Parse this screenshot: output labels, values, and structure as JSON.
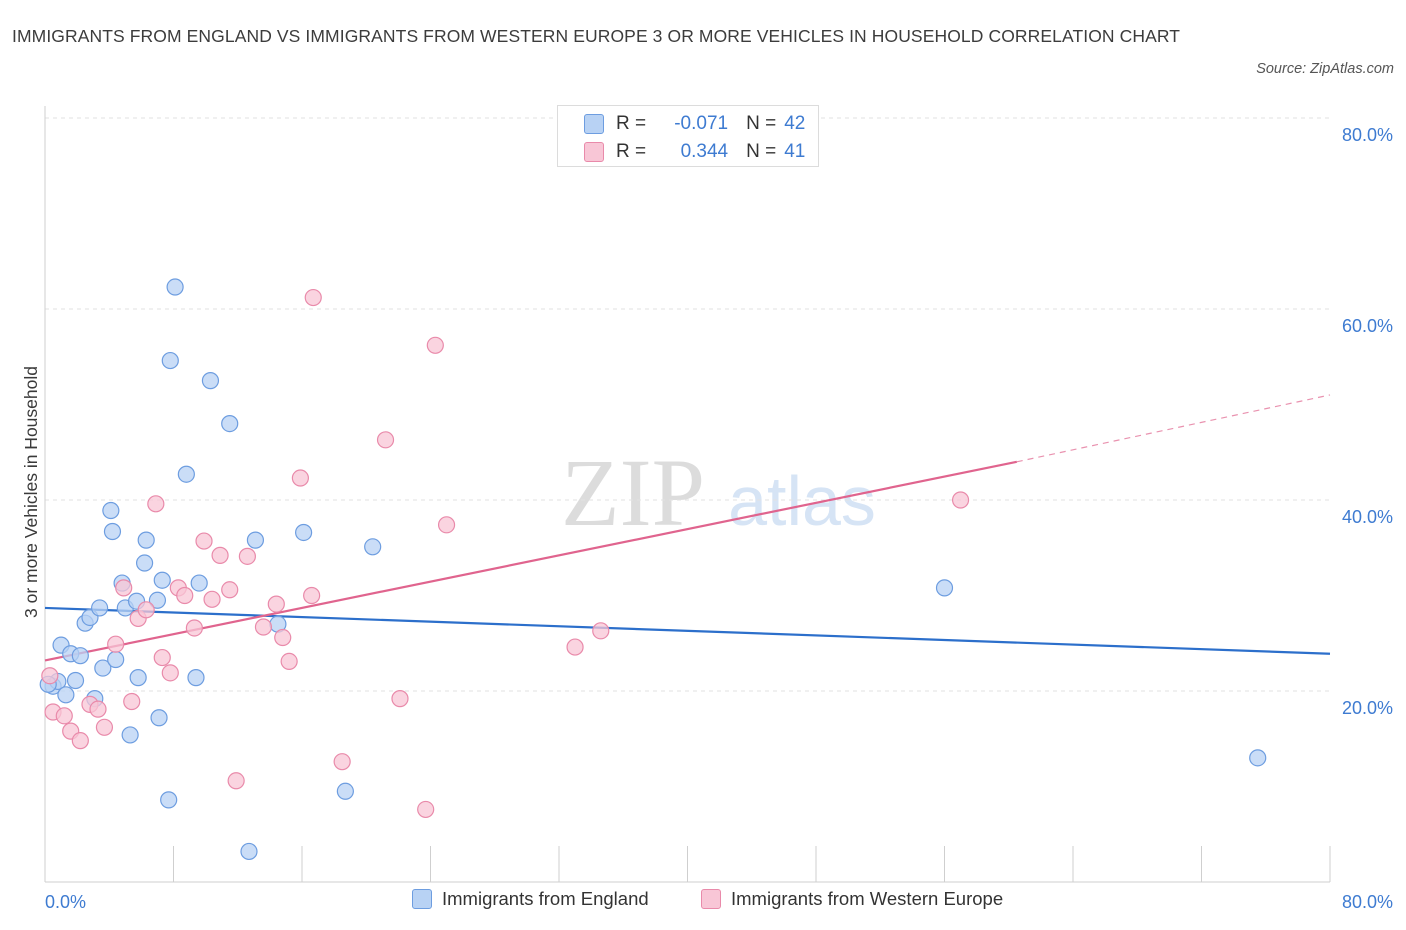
{
  "title": "IMMIGRANTS FROM ENGLAND VS IMMIGRANTS FROM WESTERN EUROPE 3 OR MORE VEHICLES IN HOUSEHOLD CORRELATION CHART",
  "source": "Source: ZipAtlas.com",
  "watermark": {
    "zip": "ZIP",
    "atlas": "atlas"
  },
  "colors": {
    "blue_fill": "#b8d2f4",
    "blue_stroke": "#6d9de0",
    "blue_line": "#2c6fcb",
    "pink_fill": "#f8c6d6",
    "pink_stroke": "#e98aaa",
    "pink_line": "#e0648e",
    "tick_label": "#3e7bd1",
    "grid": "#e2e2e2"
  },
  "legend_box": {
    "rows": [
      {
        "series": "blue",
        "r_label": "R =",
        "r_value": "-0.071",
        "n_label": "N =",
        "n_value": "42"
      },
      {
        "series": "pink",
        "r_label": "R =",
        "r_value": "0.344",
        "n_label": "N =",
        "n_value": "41"
      }
    ]
  },
  "legend_bottom": [
    {
      "series": "blue",
      "label": "Immigrants from England"
    },
    {
      "series": "pink",
      "label": "Immigrants from Western Europe"
    }
  ],
  "chart_data": {
    "type": "scatter",
    "title": "IMMIGRANTS FROM ENGLAND VS IMMIGRANTS FROM WESTERN EUROPE 3 OR MORE VEHICLES IN HOUSEHOLD CORRELATION CHART",
    "xlabel": "",
    "ylabel": "3 or more Vehicles in Household",
    "xlim": [
      0,
      80
    ],
    "ylim": [
      0,
      80
    ],
    "x_tick_labels": [
      {
        "value": 0,
        "label": "0.0%"
      },
      {
        "value": 80,
        "label": "80.0%"
      }
    ],
    "y_tick_labels": [
      {
        "value": 20,
        "label": "20.0%"
      },
      {
        "value": 40,
        "label": "40.0%"
      },
      {
        "value": 60,
        "label": "60.0%"
      },
      {
        "value": 80,
        "label": "80.0%"
      }
    ],
    "grid": true,
    "legend_position": "top-center",
    "series": [
      {
        "name": "Immigrants from England",
        "color": "blue",
        "r": -0.071,
        "n": 42,
        "trend": {
          "x": [
            0,
            80
          ],
          "y": [
            28.7,
            23.9
          ]
        },
        "points": [
          {
            "x": 0.5,
            "y": 20.5
          },
          {
            "x": 0.8,
            "y": 21.0
          },
          {
            "x": 1.0,
            "y": 24.8
          },
          {
            "x": 1.3,
            "y": 19.6
          },
          {
            "x": 1.6,
            "y": 23.9
          },
          {
            "x": 1.9,
            "y": 21.1
          },
          {
            "x": 2.2,
            "y": 23.7
          },
          {
            "x": 2.5,
            "y": 27.1
          },
          {
            "x": 2.8,
            "y": 27.7
          },
          {
            "x": 3.1,
            "y": 19.2
          },
          {
            "x": 3.4,
            "y": 28.7
          },
          {
            "x": 3.6,
            "y": 22.4
          },
          {
            "x": 4.1,
            "y": 38.9
          },
          {
            "x": 4.2,
            "y": 36.7
          },
          {
            "x": 4.4,
            "y": 23.3
          },
          {
            "x": 4.8,
            "y": 31.3
          },
          {
            "x": 5.0,
            "y": 28.7
          },
          {
            "x": 5.3,
            "y": 15.4
          },
          {
            "x": 5.7,
            "y": 29.4
          },
          {
            "x": 5.8,
            "y": 21.4
          },
          {
            "x": 6.2,
            "y": 33.4
          },
          {
            "x": 6.3,
            "y": 35.8
          },
          {
            "x": 7.0,
            "y": 29.5
          },
          {
            "x": 7.1,
            "y": 17.2
          },
          {
            "x": 7.3,
            "y": 31.6
          },
          {
            "x": 7.7,
            "y": 8.6
          },
          {
            "x": 7.8,
            "y": 54.6
          },
          {
            "x": 8.1,
            "y": 62.3
          },
          {
            "x": 8.8,
            "y": 42.7
          },
          {
            "x": 9.4,
            "y": 21.4
          },
          {
            "x": 9.6,
            "y": 31.3
          },
          {
            "x": 10.3,
            "y": 52.5
          },
          {
            "x": 11.5,
            "y": 48.0
          },
          {
            "x": 12.7,
            "y": 3.2
          },
          {
            "x": 13.1,
            "y": 35.8
          },
          {
            "x": 14.5,
            "y": 27.0
          },
          {
            "x": 16.1,
            "y": 36.6
          },
          {
            "x": 18.7,
            "y": 9.5
          },
          {
            "x": 20.4,
            "y": 35.1
          },
          {
            "x": 56.0,
            "y": 30.8
          },
          {
            "x": 75.5,
            "y": 13.0
          },
          {
            "x": 0.2,
            "y": 20.7
          }
        ]
      },
      {
        "name": "Immigrants from Western Europe",
        "color": "pink",
        "r": 0.344,
        "n": 41,
        "trend": {
          "x": [
            0,
            60.5
          ],
          "y": [
            23.2,
            44.0
          ]
        },
        "trend_dashed": {
          "x": [
            60.5,
            80
          ],
          "y": [
            44.0,
            51.0
          ]
        },
        "points": [
          {
            "x": 0.3,
            "y": 21.6
          },
          {
            "x": 0.5,
            "y": 17.8
          },
          {
            "x": 1.2,
            "y": 17.4
          },
          {
            "x": 1.6,
            "y": 15.8
          },
          {
            "x": 2.2,
            "y": 14.8
          },
          {
            "x": 2.8,
            "y": 18.6
          },
          {
            "x": 3.3,
            "y": 18.1
          },
          {
            "x": 3.7,
            "y": 16.2
          },
          {
            "x": 4.4,
            "y": 24.9
          },
          {
            "x": 4.9,
            "y": 30.8
          },
          {
            "x": 5.4,
            "y": 18.9
          },
          {
            "x": 5.8,
            "y": 27.6
          },
          {
            "x": 6.3,
            "y": 28.5
          },
          {
            "x": 6.9,
            "y": 39.6
          },
          {
            "x": 7.3,
            "y": 23.5
          },
          {
            "x": 7.8,
            "y": 21.9
          },
          {
            "x": 8.3,
            "y": 30.8
          },
          {
            "x": 8.7,
            "y": 30.0
          },
          {
            "x": 9.3,
            "y": 26.6
          },
          {
            "x": 9.9,
            "y": 35.7
          },
          {
            "x": 10.4,
            "y": 29.6
          },
          {
            "x": 10.9,
            "y": 34.2
          },
          {
            "x": 11.5,
            "y": 30.6
          },
          {
            "x": 11.9,
            "y": 10.6
          },
          {
            "x": 12.6,
            "y": 34.1
          },
          {
            "x": 13.6,
            "y": 26.7
          },
          {
            "x": 14.4,
            "y": 29.1
          },
          {
            "x": 14.8,
            "y": 25.6
          },
          {
            "x": 15.2,
            "y": 23.1
          },
          {
            "x": 15.9,
            "y": 42.3
          },
          {
            "x": 16.6,
            "y": 30.0
          },
          {
            "x": 16.7,
            "y": 61.2
          },
          {
            "x": 18.5,
            "y": 12.6
          },
          {
            "x": 21.2,
            "y": 46.3
          },
          {
            "x": 22.1,
            "y": 19.2
          },
          {
            "x": 23.7,
            "y": 7.6
          },
          {
            "x": 24.3,
            "y": 56.2
          },
          {
            "x": 25.0,
            "y": 37.4
          },
          {
            "x": 33.0,
            "y": 24.6
          },
          {
            "x": 34.6,
            "y": 26.3
          },
          {
            "x": 57.0,
            "y": 40.0
          }
        ]
      }
    ]
  }
}
